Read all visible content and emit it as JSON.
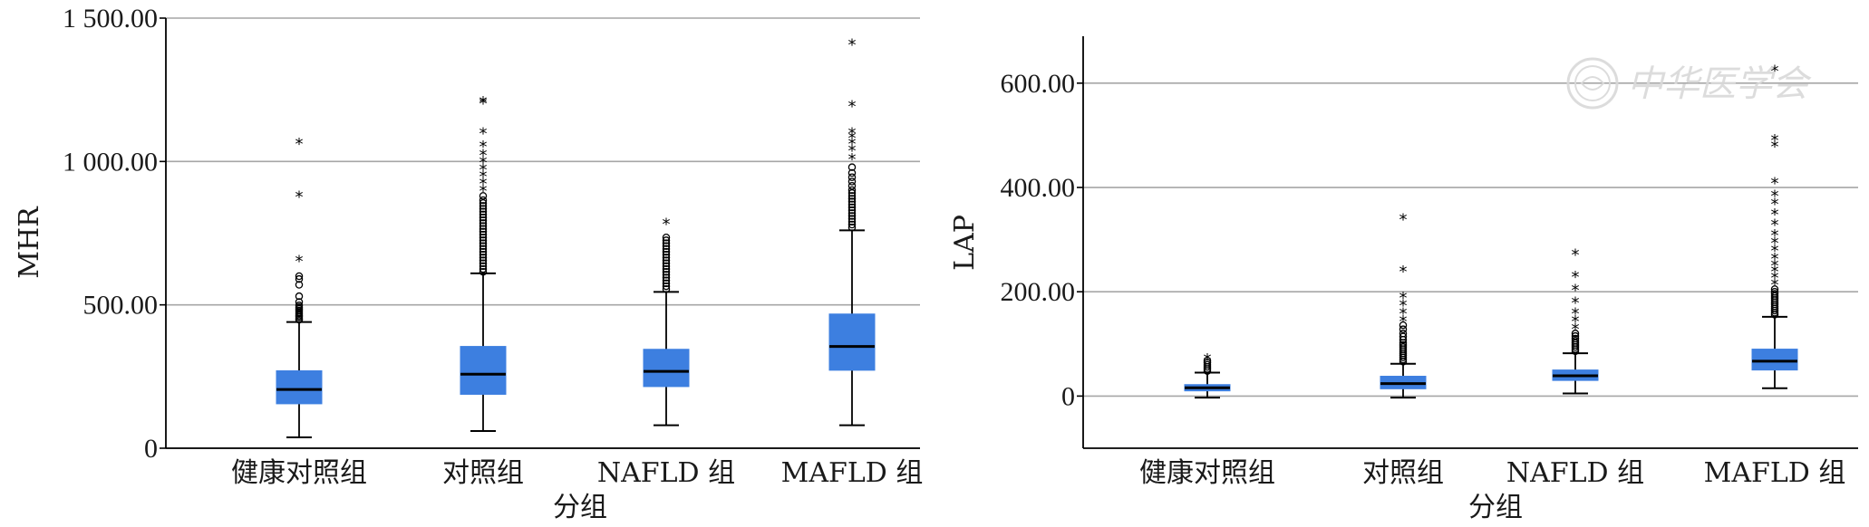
{
  "colors": {
    "box_fill": "#3d7fe0",
    "median": "#000000",
    "gridline": "#a6a6a6",
    "axis": "#000000",
    "watermark": "#d9d9d9"
  },
  "watermark": {
    "icon": "journal-seal-icon",
    "text": "中华医学会"
  },
  "chart_data": [
    {
      "type": "box",
      "xlabel": "分组",
      "ylabel": "MHR",
      "ylim": [
        0,
        1500
      ],
      "yticks": [
        0,
        500,
        1000,
        1500
      ],
      "ytick_labels": [
        "0",
        "500.00",
        "1 000.00",
        "1 500.00"
      ],
      "grid": true,
      "categories": [
        "健康对照组",
        "对照组",
        "NAFLD 组",
        "MAFLD 组"
      ],
      "boxes": [
        {
          "whisker_low": 38,
          "q1": 155,
          "median": 205,
          "q3": 270,
          "whisker_high": 440,
          "outliers": [
            448,
            452,
            458,
            463,
            468,
            474,
            480,
            486,
            492,
            498,
            510,
            530,
            570,
            590,
            600
          ],
          "extremes": [
            655,
            880,
            1065
          ]
        },
        {
          "whisker_low": 60,
          "q1": 188,
          "median": 258,
          "q3": 355,
          "whisker_high": 610,
          "outliers": [
            615,
            625,
            635,
            645,
            655,
            665,
            675,
            685,
            695,
            705,
            715,
            725,
            735,
            745,
            755,
            765,
            775,
            785,
            795,
            805,
            815,
            825,
            835,
            845,
            855,
            865,
            880
          ],
          "extremes": [
            900,
            925,
            950,
            975,
            1000,
            1025,
            1055,
            1100,
            1205,
            1210
          ]
        },
        {
          "whisker_low": 80,
          "q1": 215,
          "median": 268,
          "q3": 345,
          "whisker_high": 545,
          "outliers": [
            555,
            565,
            575,
            585,
            595,
            605,
            615,
            625,
            635,
            645,
            655,
            665,
            675,
            685,
            695,
            705,
            715,
            725,
            735
          ],
          "extremes": [
            785
          ]
        },
        {
          "whisker_low": 80,
          "q1": 272,
          "median": 355,
          "q3": 468,
          "whisker_high": 760,
          "outliers": [
            770,
            780,
            790,
            800,
            810,
            820,
            830,
            840,
            850,
            860,
            870,
            880,
            890,
            900,
            915,
            930,
            945,
            960,
            980
          ],
          "extremes": [
            1010,
            1040,
            1065,
            1085,
            1100,
            1195,
            1410
          ]
        }
      ]
    },
    {
      "type": "box",
      "xlabel": "分组",
      "ylabel": "LAP",
      "ylim": [
        -100,
        690
      ],
      "yticks": [
        0,
        200,
        400,
        600
      ],
      "ytick_labels": [
        "0",
        "200.00",
        "400.00",
        "600.00"
      ],
      "grid": true,
      "categories": [
        "健康对照组",
        "对照组",
        "NAFLD 组",
        "MAFLD 组"
      ],
      "boxes": [
        {
          "whisker_low": -3,
          "q1": 10,
          "median": 16,
          "q3": 22,
          "whisker_high": 45,
          "outliers": [
            48,
            52,
            56,
            60,
            64,
            68
          ],
          "extremes": [
            72
          ]
        },
        {
          "whisker_low": -3,
          "q1": 14,
          "median": 24,
          "q3": 38,
          "whisker_high": 62,
          "outliers": [
            66,
            70,
            74,
            78,
            82,
            86,
            90,
            94,
            98,
            102,
            108,
            114,
            120,
            128,
            136
          ],
          "extremes": [
            145,
            160,
            175,
            190,
            240,
            340
          ]
        },
        {
          "whisker_low": 5,
          "q1": 30,
          "median": 39,
          "q3": 50,
          "whisker_high": 82,
          "outliers": [
            86,
            90,
            94,
            98,
            102,
            106,
            110,
            115,
            120
          ],
          "extremes": [
            130,
            145,
            160,
            180,
            205,
            230,
            272
          ]
        },
        {
          "whisker_low": 15,
          "q1": 50,
          "median": 67,
          "q3": 90,
          "whisker_high": 152,
          "outliers": [
            156,
            160,
            164,
            168,
            172,
            176,
            180,
            184,
            188,
            192,
            196,
            200,
            205
          ],
          "extremes": [
            215,
            228,
            240,
            252,
            265,
            280,
            295,
            310,
            330,
            350,
            370,
            385,
            410,
            480,
            492,
            625
          ]
        }
      ]
    }
  ]
}
